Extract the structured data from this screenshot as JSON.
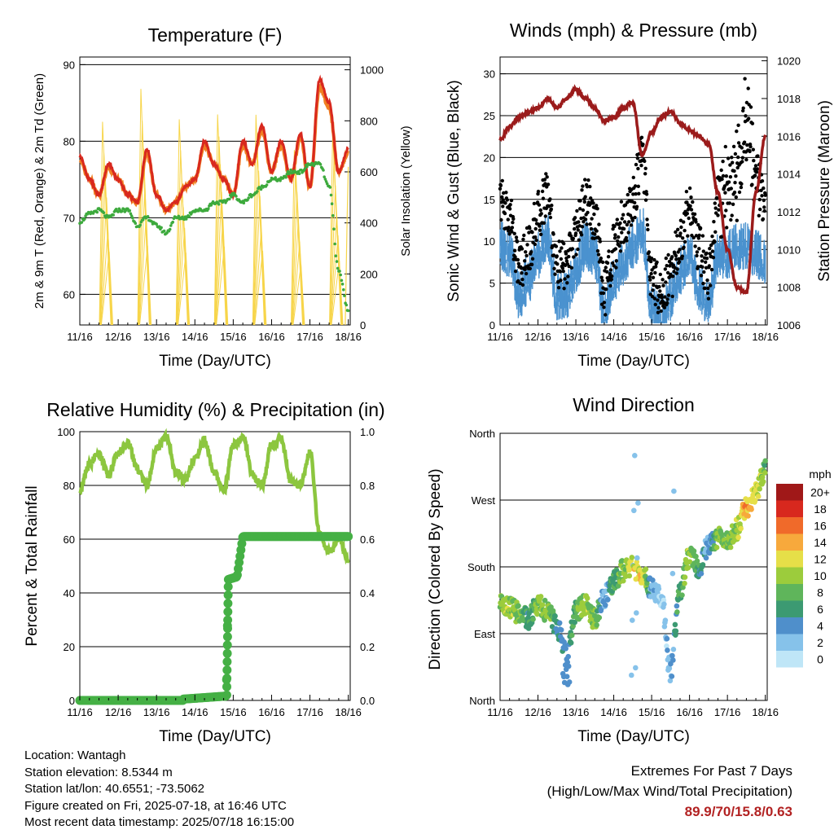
{
  "days": [
    "11/16",
    "12/16",
    "13/16",
    "14/16",
    "15/16",
    "16/16",
    "17/16",
    "18/16"
  ],
  "colors": {
    "t2m": "#d8281e",
    "t9m": "#f07f22",
    "td": "#3daa3d",
    "solar": "#f7d54a",
    "wind": "#4a92cf",
    "gust": "#000000",
    "pressure": "#9b1b1b",
    "rh": "#8cc63f",
    "precip": "#45b045",
    "extremes": "#b22222"
  },
  "panels": {
    "temperature": {
      "title": "Temperature (F)",
      "xlabel": "Time (Day/UTC)",
      "ylabel_left": "2m & 9m T (Red, Orange) & 2m Td (Green)",
      "ylabel_right": "Solar Insolation (Yellow)",
      "yticks_left": [
        "60",
        "70",
        "80",
        "90"
      ],
      "yticks_right": [
        "0",
        "200",
        "400",
        "600",
        "800",
        "1000"
      ]
    },
    "wind": {
      "title": "Winds (mph) & Pressure (mb)",
      "xlabel": "Time (Day/UTC)",
      "ylabel_left": "Sonic Wind & Gust (Blue, Black)",
      "ylabel_right": "Station Pressure (Maroon)",
      "yticks_left": [
        "0",
        "5",
        "10",
        "15",
        "20",
        "25",
        "30"
      ],
      "yticks_right": [
        "1006",
        "1008",
        "1010",
        "1012",
        "1014",
        "1016",
        "1018",
        "1020"
      ]
    },
    "humidity": {
      "title": "Relative Humidity (%) & Precipitation (in)",
      "xlabel": "Time (Day/UTC)",
      "ylabel_left": "Percent & Total Rainfall",
      "yticks_left": [
        "0",
        "20",
        "40",
        "60",
        "80",
        "100"
      ],
      "yticks_right": [
        "0.0",
        "0.2",
        "0.4",
        "0.6",
        "0.8",
        "1.0"
      ]
    },
    "direction": {
      "title": "Wind Direction",
      "xlabel": "Time (Day/UTC)",
      "ylabel_left": "Direction (Colored By Speed)",
      "yticks_left": [
        "North",
        "East",
        "South",
        "West",
        "North"
      ],
      "colorbar_title": "mph",
      "colorbar_labels": [
        "0",
        "2",
        "4",
        "6",
        "8",
        "10",
        "12",
        "14",
        "16",
        "18",
        "20+"
      ],
      "colorbar_colors": [
        "#bfe6f7",
        "#86c2ea",
        "#4f8fcb",
        "#3c9a72",
        "#5fb55b",
        "#9ccc3c",
        "#e6df48",
        "#f7a93c",
        "#f06a2a",
        "#d8281e",
        "#a01818"
      ]
    }
  },
  "info": {
    "location": "Location: Wantagh",
    "elevation": "Station elevation: 8.5344 m",
    "latlon": "Station lat/lon: 40.6551; -73.5062",
    "created": "Figure created on Fri, 2025-07-18, at 16:46 UTC",
    "recent": "Most recent data timestamp: 2025/07/18 16:15:00"
  },
  "extremes": {
    "title": "Extremes For Past 7 Days",
    "subtitle": "(High/Low/Max Wind/Total Precipitation)",
    "values": "89.9/70/15.8/0.63"
  },
  "chart_data": [
    {
      "type": "line",
      "title": "Temperature (F)",
      "xlabel": "Time (Day/UTC)",
      "ylabel": "2m & 9m T (Red, Orange) & 2m Td (Green)",
      "ylabel_right": "Solar Insolation (Yellow)",
      "x": [
        0,
        0.25,
        0.5,
        0.75,
        1,
        1.25,
        1.5,
        1.75,
        2,
        2.25,
        2.5,
        2.75,
        3,
        3.25,
        3.5,
        3.75,
        4,
        4.25,
        4.5,
        4.75,
        5,
        5.25,
        5.5,
        5.75,
        6,
        6.25,
        6.5,
        6.75,
        7
      ],
      "x_unit": "days since 11/16 00 UTC",
      "ylim": [
        56,
        91
      ],
      "ylim_right": [
        0,
        1050
      ],
      "series": [
        {
          "name": "2m T",
          "axis": "left",
          "values": [
            78,
            75,
            73,
            77,
            75,
            73,
            72,
            79,
            73,
            71,
            72,
            74,
            75,
            80,
            77,
            75,
            73,
            80,
            77,
            82,
            76,
            80,
            75,
            81,
            74,
            88,
            85,
            76,
            79
          ]
        },
        {
          "name": "9m T",
          "axis": "left",
          "values": [
            77.5,
            75,
            73,
            76.5,
            75,
            73,
            72,
            78.5,
            73,
            71,
            72,
            74,
            75,
            79.5,
            77,
            75,
            73,
            79.5,
            77,
            81.5,
            76,
            79.5,
            75,
            80.5,
            74,
            87,
            84.5,
            76,
            78.5
          ]
        },
        {
          "name": "2m Td",
          "axis": "left",
          "values": [
            69.5,
            70.5,
            71,
            70,
            71,
            71,
            69,
            70,
            69,
            68,
            70,
            70,
            71,
            71,
            72,
            72,
            73,
            72,
            73,
            74,
            75,
            75,
            76,
            76,
            77,
            77,
            74,
            63,
            58
          ]
        },
        {
          "name": "Solar Insolation",
          "axis": "right",
          "values": [
            0,
            950,
            0,
            0,
            0,
            1000,
            0,
            0,
            0,
            850,
            0,
            0,
            0,
            900,
            0,
            0,
            0,
            900,
            0,
            0,
            0,
            700,
            0,
            0,
            0,
            700,
            0,
            0,
            350
          ]
        }
      ]
    },
    {
      "type": "line",
      "title": "Winds (mph) & Pressure (mb)",
      "xlabel": "Time (Day/UTC)",
      "ylabel": "Sonic Wind & Gust (Blue, Black)",
      "ylabel_right": "Station Pressure (Maroon)",
      "x": [
        0,
        0.25,
        0.5,
        0.75,
        1,
        1.25,
        1.5,
        1.75,
        2,
        2.25,
        2.5,
        2.75,
        3,
        3.25,
        3.5,
        3.75,
        4,
        4.25,
        4.5,
        4.75,
        5,
        5.25,
        5.5,
        5.75,
        6,
        6.25,
        6.5,
        6.75,
        7
      ],
      "x_unit": "days since 11/16 00 UTC",
      "ylim": [
        0,
        32
      ],
      "ylim_right": [
        1006,
        1020.2
      ],
      "series": [
        {
          "name": "Sonic Wind",
          "axis": "left",
          "values": [
            10,
            9,
            4,
            6,
            9,
            11,
            4,
            4,
            7,
            10,
            9,
            2,
            6,
            8,
            10,
            12,
            3,
            1,
            4,
            7,
            9,
            5,
            3,
            9,
            9,
            10,
            10,
            9,
            8
          ]
        },
        {
          "name": "Gust",
          "axis": "left",
          "values": [
            15,
            13,
            7,
            9,
            13,
            16,
            7,
            7,
            11,
            15,
            13,
            4,
            9,
            12,
            15,
            20,
            6,
            4,
            6,
            10,
            14,
            9,
            6,
            15,
            16,
            18,
            24,
            19,
            14
          ]
        },
        {
          "name": "Station Pressure",
          "axis": "right",
          "values": [
            1015.8,
            1016.5,
            1017,
            1017.3,
            1017.5,
            1018,
            1017.5,
            1018,
            1018.5,
            1018,
            1017.5,
            1016.8,
            1017,
            1017.5,
            1017.8,
            1015,
            1016.2,
            1017,
            1017.3,
            1016.7,
            1016.3,
            1016,
            1015.6,
            1013,
            1010,
            1008,
            1007.7,
            1013,
            1016
          ]
        }
      ]
    },
    {
      "type": "line",
      "title": "Relative Humidity (%) & Precipitation (in)",
      "xlabel": "Time (Day/UTC)",
      "ylabel": "Percent & Total Rainfall",
      "x": [
        0,
        0.25,
        0.5,
        0.75,
        1,
        1.25,
        1.5,
        1.75,
        2,
        2.25,
        2.5,
        2.75,
        3,
        3.25,
        3.5,
        3.75,
        4,
        4.25,
        4.5,
        4.75,
        5,
        5.25,
        5.5,
        5.75,
        6,
        6.25,
        6.5,
        6.75,
        7
      ],
      "x_unit": "days since 11/16 00 UTC",
      "ylim": [
        0,
        100
      ],
      "ylim_right": [
        0,
        1.0
      ],
      "series": [
        {
          "name": "Relative Humidity",
          "axis": "left",
          "values": [
            78,
            88,
            92,
            84,
            92,
            96,
            86,
            80,
            94,
            98,
            85,
            82,
            90,
            97,
            85,
            78,
            95,
            98,
            84,
            80,
            95,
            97,
            82,
            80,
            92,
            62,
            55,
            60,
            52
          ]
        },
        {
          "name": "Total Precipitation",
          "axis": "right",
          "values": [
            0,
            0,
            0,
            0,
            0,
            0,
            0,
            0,
            0,
            0.01,
            0.01,
            0.02,
            0.02,
            0.02,
            0.02,
            0.02,
            0.6,
            0.61,
            0.61,
            0.61,
            0.61,
            0.61,
            0.61,
            0.61,
            0.61,
            0.61,
            0.61,
            0.61,
            0.61
          ]
        }
      ]
    },
    {
      "type": "scatter",
      "title": "Wind Direction",
      "xlabel": "Time (Day/UTC)",
      "ylabel": "Direction (Colored By Speed)",
      "x": [
        0,
        0.25,
        0.5,
        0.75,
        1,
        1.25,
        1.5,
        1.75,
        2,
        2.25,
        2.5,
        2.75,
        3,
        3.25,
        3.5,
        3.75,
        4,
        4.25,
        4.5,
        4.75,
        5,
        5.25,
        5.5,
        5.75,
        6,
        6.25,
        6.5,
        6.75,
        7
      ],
      "x_unit": "days since 11/16 00 UTC",
      "y_unit": "direction degrees (90=East, 180=South, 270=West)",
      "ylim": [
        0,
        360
      ],
      "series": [
        {
          "name": "Direction",
          "values": [
            130,
            125,
            118,
            110,
            130,
            120,
            100,
            60,
            120,
            128,
            110,
            140,
            160,
            175,
            180,
            170,
            150,
            140,
            40,
            150,
            195,
            180,
            210,
            220,
            215,
            230,
            260,
            280,
            310
          ]
        },
        {
          "name": "Speed",
          "values": [
            10,
            10,
            9,
            6,
            9,
            9,
            5,
            4,
            8,
            10,
            9,
            3,
            7,
            9,
            12,
            12,
            3,
            1,
            3,
            7,
            10,
            6,
            3,
            9,
            9,
            10,
            14,
            12,
            8
          ]
        }
      ]
    }
  ]
}
